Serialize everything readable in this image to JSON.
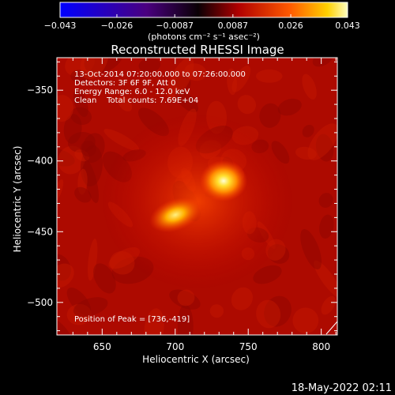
{
  "chart_data": {
    "type": "heatmap",
    "title": "Reconstructed RHESSI Image",
    "xlabel": "Heliocentric X (arcsec)",
    "ylabel": "Heliocentric Y (arcsec)",
    "xlim": [
      619,
      811
    ],
    "ylim": [
      -523,
      -327
    ],
    "xticks": [
      650,
      700,
      750,
      800
    ],
    "yticks": [
      -350,
      -400,
      -450,
      -500
    ],
    "colorbar": {
      "min": -0.043,
      "max": 0.043,
      "ticks": [
        "−0.043",
        "−0.026",
        "−0.0087",
        "0.0087",
        "0.026",
        "0.043"
      ],
      "tick_values": [
        -0.043,
        -0.026,
        -0.0087,
        0.0087,
        0.026,
        0.043
      ],
      "units": "(photons cm⁻² s⁻¹ asec⁻²)"
    },
    "info": [
      "13-Oct-2014 07:20:00.000 to 07:26:00.000",
      "Detectors: 3F 6F 9F, Att 0",
      "Energy Range: 6.0 - 12.0 keV",
      "Clean    Total counts: 7.69E+04"
    ],
    "peak_label": "Position of Peak = [736,-419]",
    "sources": [
      {
        "x": 736,
        "y": -419,
        "peak": 0.043
      },
      {
        "x": 698,
        "y": -447,
        "peak": 0.031
      }
    ],
    "colors": {
      "background": "#000000",
      "text": "#ffffff"
    }
  },
  "timestamp": "18-May-2022 02:11"
}
